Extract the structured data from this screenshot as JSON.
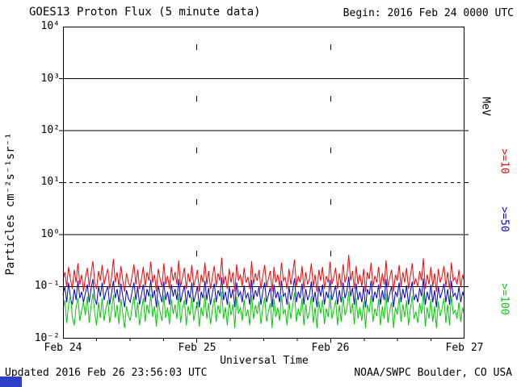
{
  "chart_data": {
    "type": "line",
    "title": "GOES13 Proton Flux (5 minute data)",
    "begin_label": "Begin: 2016 Feb 24 0000 UTC",
    "xlabel": "Universal Time",
    "ylabel": "Particles cm⁻²s⁻¹sr⁻¹",
    "y_scale": "log",
    "ylim": [
      0.01,
      10000
    ],
    "y_tick_labels": [
      "10⁴",
      "10³",
      "10²",
      "10¹",
      "10⁰",
      "10⁻¹",
      "10⁻²"
    ],
    "x_tick_labels": [
      "Feb 24",
      "Feb 25",
      "Feb 26",
      "Feb 27"
    ],
    "x_range_days": 3,
    "right_axis_unit": "MeV",
    "gridlines": {
      "horizontal_solid_at": [
        1000,
        100,
        1,
        0.1
      ],
      "horizontal_dashed_at": [
        10
      ],
      "vertical_dashed_at": [
        "Feb 25",
        "Feb 26"
      ]
    },
    "series": [
      {
        "id": "p10",
        "name": ">=10",
        "color": "#ff0000",
        "values": [
          0.13,
          0.19,
          0.1,
          0.24,
          0.14,
          0.09,
          0.21,
          0.12,
          0.28,
          0.11,
          0.17,
          0.08,
          0.15,
          0.23,
          0.1,
          0.18,
          0.31,
          0.12,
          0.09,
          0.2,
          0.13,
          0.26,
          0.11,
          0.16,
          0.22,
          0.09,
          0.15,
          0.34,
          0.12,
          0.19,
          0.1,
          0.25,
          0.13,
          0.08,
          0.18,
          0.12,
          0.1,
          0.16,
          0.27,
          0.11,
          0.21,
          0.09,
          0.14,
          0.24,
          0.1,
          0.19,
          0.13,
          0.3,
          0.12,
          0.17,
          0.08,
          0.22,
          0.14,
          0.1,
          0.28,
          0.11,
          0.16,
          0.09,
          0.24,
          0.13,
          0.19,
          0.11,
          0.32,
          0.1,
          0.15,
          0.23,
          0.09,
          0.18,
          0.12,
          0.26,
          0.1,
          0.14,
          0.21,
          0.08,
          0.17,
          0.12,
          0.29,
          0.11,
          0.2,
          0.09,
          0.15,
          0.25,
          0.1,
          0.18,
          0.13,
          0.36,
          0.11,
          0.16,
          0.09,
          0.22,
          0.12,
          0.19,
          0.08,
          0.27,
          0.13,
          0.17,
          0.1,
          0.23,
          0.12,
          0.15,
          0.09,
          0.31,
          0.11,
          0.18,
          0.13,
          0.21,
          0.09,
          0.16,
          0.26,
          0.1,
          0.14,
          0.2,
          0.08,
          0.24,
          0.12,
          0.17,
          0.1,
          0.29,
          0.13,
          0.15,
          0.09,
          0.22,
          0.11,
          0.18,
          0.33,
          0.1,
          0.16,
          0.12,
          0.25,
          0.09,
          0.19,
          0.11,
          0.14,
          0.28,
          0.1,
          0.17,
          0.08,
          0.21,
          0.13,
          0.24,
          0.09,
          0.16,
          0.12,
          0.3,
          0.11,
          0.15,
          0.23,
          0.09,
          0.18,
          0.1,
          0.27,
          0.12,
          0.16,
          0.41,
          0.13,
          0.2,
          0.09,
          0.25,
          0.11,
          0.17,
          0.1,
          0.22,
          0.08,
          0.19,
          0.14,
          0.29,
          0.1,
          0.16,
          0.12,
          0.24,
          0.09,
          0.18,
          0.11,
          0.32,
          0.1,
          0.15,
          0.21,
          0.08,
          0.17,
          0.13,
          0.26,
          0.1,
          0.19,
          0.12,
          0.23,
          0.09,
          0.16,
          0.28,
          0.11,
          0.14,
          0.1,
          0.2,
          0.13,
          0.35,
          0.09,
          0.17,
          0.11,
          0.24,
          0.1,
          0.18,
          0.08,
          0.22,
          0.12,
          0.16,
          0.25,
          0.1,
          0.19,
          0.09,
          0.29,
          0.13,
          0.15,
          0.11,
          0.21,
          0.1,
          0.17,
          0.12
        ]
      },
      {
        "id": "p50",
        "name": ">=50",
        "color": "#0000dd",
        "values": [
          0.07,
          0.1,
          0.05,
          0.12,
          0.06,
          0.045,
          0.09,
          0.055,
          0.13,
          0.06,
          0.08,
          0.05,
          0.075,
          0.11,
          0.05,
          0.09,
          0.14,
          0.06,
          0.045,
          0.1,
          0.065,
          0.12,
          0.055,
          0.08,
          0.1,
          0.045,
          0.075,
          0.13,
          0.06,
          0.09,
          0.05,
          0.115,
          0.065,
          0.04,
          0.085,
          0.06,
          0.05,
          0.08,
          0.12,
          0.055,
          0.1,
          0.045,
          0.07,
          0.11,
          0.05,
          0.09,
          0.065,
          0.135,
          0.06,
          0.085,
          0.04,
          0.105,
          0.07,
          0.05,
          0.125,
          0.055,
          0.08,
          0.045,
          0.11,
          0.065,
          0.09,
          0.055,
          0.14,
          0.05,
          0.075,
          0.105,
          0.045,
          0.085,
          0.06,
          0.12,
          0.05,
          0.07,
          0.1,
          0.04,
          0.08,
          0.06,
          0.13,
          0.055,
          0.095,
          0.045,
          0.075,
          0.115,
          0.05,
          0.085,
          0.065,
          0.15,
          0.055,
          0.08,
          0.045,
          0.1,
          0.06,
          0.09,
          0.04,
          0.12,
          0.065,
          0.08,
          0.05,
          0.105,
          0.06,
          0.075,
          0.045,
          0.135,
          0.055,
          0.085,
          0.065,
          0.1,
          0.045,
          0.08,
          0.12,
          0.05,
          0.07,
          0.095,
          0.04,
          0.11,
          0.06,
          0.08,
          0.05,
          0.13,
          0.065,
          0.075,
          0.045,
          0.1,
          0.055,
          0.085,
          0.145,
          0.05,
          0.08,
          0.06,
          0.115,
          0.045,
          0.09,
          0.055,
          0.07,
          0.125,
          0.05,
          0.08,
          0.04,
          0.1,
          0.065,
          0.11,
          0.045,
          0.08,
          0.06,
          0.135,
          0.055,
          0.075,
          0.105,
          0.045,
          0.085,
          0.05,
          0.12,
          0.06,
          0.08,
          0.155,
          0.065,
          0.095,
          0.045,
          0.115,
          0.055,
          0.08,
          0.05,
          0.1,
          0.04,
          0.09,
          0.07,
          0.13,
          0.05,
          0.08,
          0.06,
          0.11,
          0.045,
          0.085,
          0.055,
          0.14,
          0.05,
          0.075,
          0.1,
          0.04,
          0.08,
          0.065,
          0.12,
          0.05,
          0.09,
          0.06,
          0.105,
          0.045,
          0.08,
          0.125,
          0.055,
          0.07,
          0.05,
          0.095,
          0.065,
          0.145,
          0.045,
          0.08,
          0.055,
          0.11,
          0.05,
          0.085,
          0.04,
          0.1,
          0.06,
          0.08,
          0.115,
          0.05,
          0.09,
          0.045,
          0.13,
          0.065,
          0.075,
          0.055,
          0.1,
          0.05,
          0.08,
          0.06
        ]
      },
      {
        "id": "p100",
        "name": ">=100",
        "color": "#00cc00",
        "values": [
          0.035,
          0.055,
          0.02,
          0.045,
          0.07,
          0.025,
          0.018,
          0.04,
          0.06,
          0.022,
          0.035,
          0.05,
          0.028,
          0.065,
          0.02,
          0.042,
          0.075,
          0.03,
          0.018,
          0.05,
          0.025,
          0.06,
          0.022,
          0.038,
          0.055,
          0.02,
          0.035,
          0.07,
          0.025,
          0.045,
          0.019,
          0.058,
          0.03,
          0.016,
          0.042,
          0.028,
          0.022,
          0.04,
          0.065,
          0.025,
          0.05,
          0.018,
          0.035,
          0.06,
          0.021,
          0.045,
          0.03,
          0.072,
          0.026,
          0.042,
          0.017,
          0.055,
          0.032,
          0.022,
          0.068,
          0.025,
          0.04,
          0.019,
          0.058,
          0.03,
          0.045,
          0.024,
          0.075,
          0.02,
          0.038,
          0.055,
          0.018,
          0.042,
          0.028,
          0.065,
          0.022,
          0.035,
          0.052,
          0.017,
          0.04,
          0.027,
          0.07,
          0.024,
          0.048,
          0.019,
          0.036,
          0.06,
          0.021,
          0.044,
          0.03,
          0.08,
          0.024,
          0.04,
          0.018,
          0.052,
          0.028,
          0.046,
          0.016,
          0.064,
          0.03,
          0.04,
          0.022,
          0.056,
          0.027,
          0.036,
          0.018,
          0.07,
          0.024,
          0.044,
          0.03,
          0.052,
          0.019,
          0.04,
          0.062,
          0.021,
          0.033,
          0.048,
          0.016,
          0.058,
          0.026,
          0.04,
          0.022,
          0.068,
          0.03,
          0.036,
          0.018,
          0.052,
          0.024,
          0.042,
          0.078,
          0.021,
          0.038,
          0.027,
          0.06,
          0.018,
          0.046,
          0.024,
          0.033,
          0.066,
          0.02,
          0.04,
          0.016,
          0.052,
          0.03,
          0.056,
          0.019,
          0.038,
          0.026,
          0.07,
          0.024,
          0.036,
          0.055,
          0.018,
          0.044,
          0.021,
          0.064,
          0.028,
          0.038,
          0.082,
          0.03,
          0.048,
          0.019,
          0.06,
          0.024,
          0.04,
          0.022,
          0.052,
          0.016,
          0.045,
          0.032,
          0.068,
          0.021,
          0.038,
          0.027,
          0.058,
          0.018,
          0.042,
          0.024,
          0.074,
          0.02,
          0.035,
          0.05,
          0.016,
          0.04,
          0.029,
          0.062,
          0.021,
          0.046,
          0.026,
          0.054,
          0.018,
          0.038,
          0.066,
          0.024,
          0.033,
          0.02,
          0.048,
          0.03,
          0.078,
          0.017,
          0.04,
          0.024,
          0.058,
          0.021,
          0.042,
          0.016,
          0.052,
          0.027,
          0.038,
          0.06,
          0.02,
          0.045,
          0.018,
          0.068,
          0.03,
          0.035,
          0.024,
          0.05,
          0.021,
          0.04,
          0.027
        ]
      }
    ]
  },
  "footer": {
    "updated": "Updated 2016 Feb 26 23:56:03 UTC",
    "credit": "NOAA/SWPC Boulder, CO USA",
    "logo_color": "#2e3ec9"
  }
}
